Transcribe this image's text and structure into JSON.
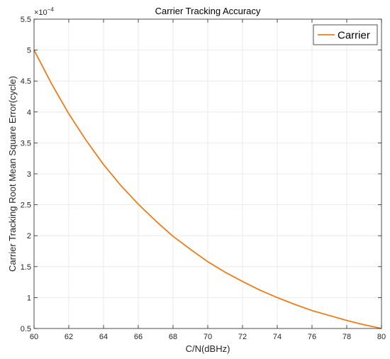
{
  "chart_data": {
    "type": "line",
    "title": "Carrier Tracking Accuracy",
    "xlabel": "C/N(dBHz)",
    "ylabel": "Carrier Tracking Root Mean Square Error(cycle)",
    "y_exponent_base": "×10",
    "y_exponent_power": "−4",
    "xlim": [
      60,
      80
    ],
    "ylim": [
      0.5,
      5.5
    ],
    "xticks": [
      60,
      62,
      64,
      66,
      68,
      70,
      72,
      74,
      76,
      78,
      80
    ],
    "xtick_labels": [
      "60",
      "62",
      "64",
      "66",
      "68",
      "70",
      "72",
      "74",
      "76",
      "78",
      "80"
    ],
    "yticks": [
      0.5,
      1,
      1.5,
      2,
      2.5,
      3,
      3.5,
      4,
      4.5,
      5,
      5.5
    ],
    "ytick_labels": [
      "0.5",
      "1",
      "1.5",
      "2",
      "2.5",
      "3",
      "3.5",
      "4",
      "4.5",
      "5",
      "5.5"
    ],
    "grid": true,
    "legend_position": "top-right",
    "series": [
      {
        "name": "Carrier",
        "color": "#ED7D1A",
        "x": [
          60,
          61,
          62,
          63,
          64,
          65,
          66,
          67,
          68,
          69,
          70,
          71,
          72,
          73,
          74,
          75,
          76,
          77,
          78,
          79,
          80
        ],
        "y": [
          5.0,
          4.46,
          3.97,
          3.54,
          3.15,
          2.81,
          2.51,
          2.24,
          1.99,
          1.78,
          1.58,
          1.41,
          1.26,
          1.12,
          1.0,
          0.89,
          0.79,
          0.71,
          0.63,
          0.56,
          0.5
        ]
      }
    ]
  }
}
